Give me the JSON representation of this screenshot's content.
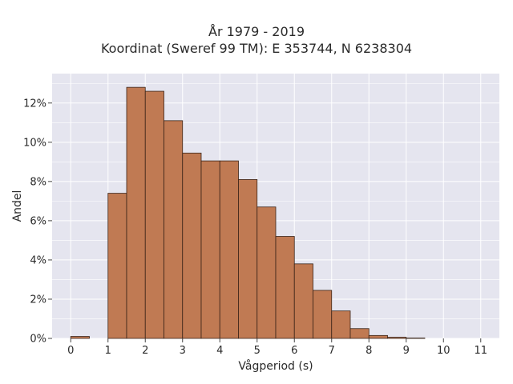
{
  "chart_data": {
    "type": "bar",
    "title": "År 1979 - 2019",
    "subtitle": "Koordinat (Sweref 99 TM): E 353744, N 6238304",
    "xlabel": "Vågperiod (s)",
    "ylabel": "Andel",
    "xlim": [
      -0.5,
      11.5
    ],
    "ylim": [
      0,
      13.5
    ],
    "x_ticks": [
      "0",
      "1",
      "2",
      "3",
      "4",
      "5",
      "6",
      "7",
      "8",
      "9",
      "10",
      "11"
    ],
    "y_ticks": [
      "0%",
      "2%",
      "4%",
      "6%",
      "8%",
      "10%",
      "12%"
    ],
    "bin_width": 0.5,
    "bins": [
      {
        "x": 0.0,
        "value": 0.1
      },
      {
        "x": 1.0,
        "value": 7.4
      },
      {
        "x": 1.5,
        "value": 12.8
      },
      {
        "x": 2.0,
        "value": 12.6
      },
      {
        "x": 2.5,
        "value": 11.1
      },
      {
        "x": 3.0,
        "value": 9.45
      },
      {
        "x": 3.5,
        "value": 9.05
      },
      {
        "x": 4.0,
        "value": 9.05
      },
      {
        "x": 4.5,
        "value": 8.1
      },
      {
        "x": 5.0,
        "value": 6.7
      },
      {
        "x": 5.5,
        "value": 5.2
      },
      {
        "x": 6.0,
        "value": 3.8
      },
      {
        "x": 6.5,
        "value": 2.45
      },
      {
        "x": 7.0,
        "value": 1.4
      },
      {
        "x": 7.5,
        "value": 0.5
      },
      {
        "x": 8.0,
        "value": 0.15
      },
      {
        "x": 8.5,
        "value": 0.06
      },
      {
        "x": 9.0,
        "value": 0.02
      }
    ],
    "bar_color": "#c07a53",
    "bar_edge_color": "#3a2418",
    "plot_background": "#e5e5ef",
    "grid": true,
    "legend": false
  }
}
